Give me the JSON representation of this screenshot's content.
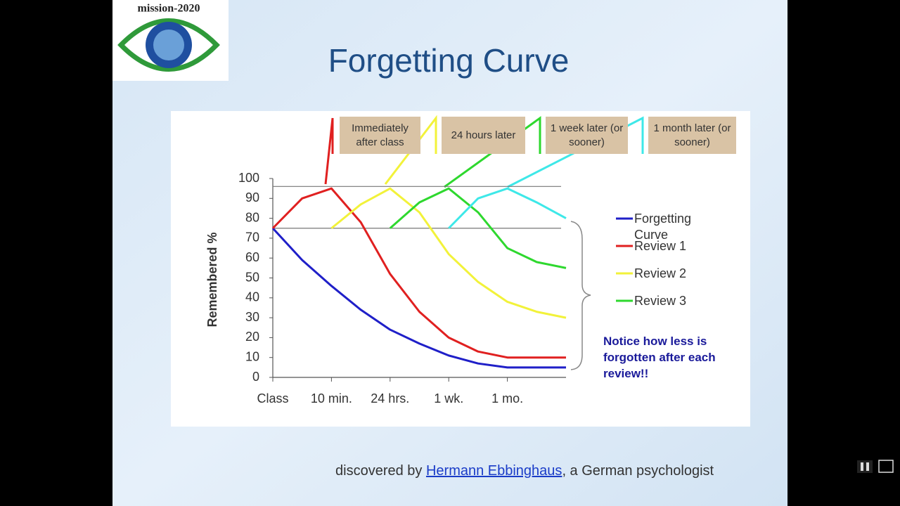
{
  "logo_text": "mission-2020",
  "footer": {
    "prefix": "discovered by",
    "link": "Hermann Ebbinghaus",
    "suffix": ", a German psychologist"
  },
  "chart_data": {
    "type": "line",
    "title": "Forgetting Curve",
    "ylabel": "Remembered %",
    "x": [
      0,
      0.5,
      1,
      1.5,
      2,
      2.5,
      3,
      3.5,
      4,
      4.5,
      5
    ],
    "xlim": [
      0,
      5
    ],
    "xticks": [
      {
        "value": 0,
        "label": "Class"
      },
      {
        "value": 1,
        "label": "10 min."
      },
      {
        "value": 2,
        "label": "24 hrs."
      },
      {
        "value": 3,
        "label": "1 wk."
      },
      {
        "value": 4,
        "label": "1 mo."
      }
    ],
    "ylim": [
      0,
      100
    ],
    "yticks": [
      0,
      10,
      20,
      30,
      40,
      50,
      60,
      70,
      80,
      90,
      100
    ],
    "reference_lines": [
      96,
      75
    ],
    "series": [
      {
        "name": "Forgetting Curve",
        "color": "#1f1fc8",
        "values": [
          75,
          59,
          46,
          34,
          24,
          17,
          11,
          7,
          5,
          5,
          5
        ]
      },
      {
        "name": "Review 1",
        "color": "#e02020",
        "values": [
          75,
          90,
          95,
          78,
          52,
          33,
          20,
          13,
          10,
          10,
          10
        ]
      },
      {
        "name": "Review 2",
        "color": "#f2f23a",
        "values": [
          null,
          null,
          75,
          87,
          95,
          83,
          62,
          48,
          38,
          33,
          30
        ]
      },
      {
        "name": "Review 3",
        "color": "#2ed82e",
        "values": [
          null,
          null,
          null,
          null,
          75,
          88,
          95,
          83,
          65,
          58,
          55
        ]
      },
      {
        "color": "#3ee8e8",
        "values": [
          null,
          null,
          null,
          null,
          null,
          null,
          75,
          90,
          95,
          88,
          80
        ]
      }
    ],
    "stage_labels": [
      "Immediately after class",
      "24 hours later",
      "1 week later (or sooner)",
      "1 month later (or sooner)"
    ],
    "annotation": "Notice how less is forgotten after each review!!"
  }
}
